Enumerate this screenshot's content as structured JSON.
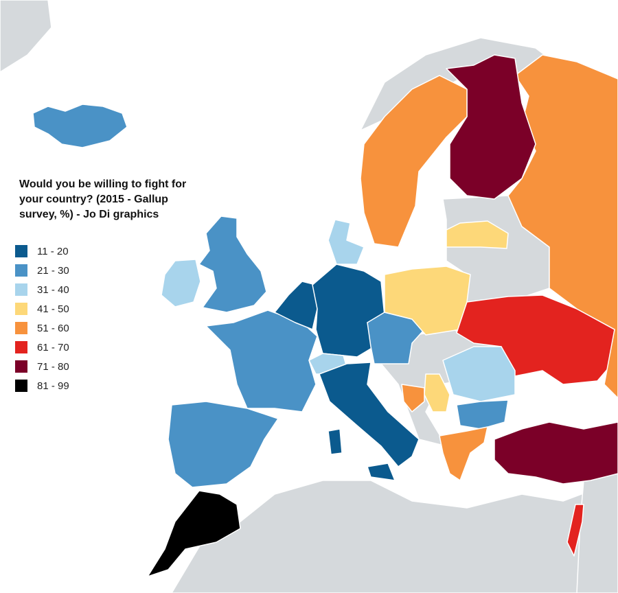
{
  "title": "Would you be willing to fight for your country? (2015 - Gallup survey, %) - Jo Di graphics",
  "legend": [
    {
      "label": "11 - 20",
      "color": "#0b5a8e"
    },
    {
      "label": "21 - 30",
      "color": "#4a92c6"
    },
    {
      "label": "31 - 40",
      "color": "#a8d4ec"
    },
    {
      "label": "41 - 50",
      "color": "#fdd879"
    },
    {
      "label": "51 - 60",
      "color": "#f7923d"
    },
    {
      "label": "61 - 70",
      "color": "#e3231f"
    },
    {
      "label": "71 - 80",
      "color": "#7b0028"
    },
    {
      "label": "81 - 99",
      "color": "#000000"
    }
  ]
}
